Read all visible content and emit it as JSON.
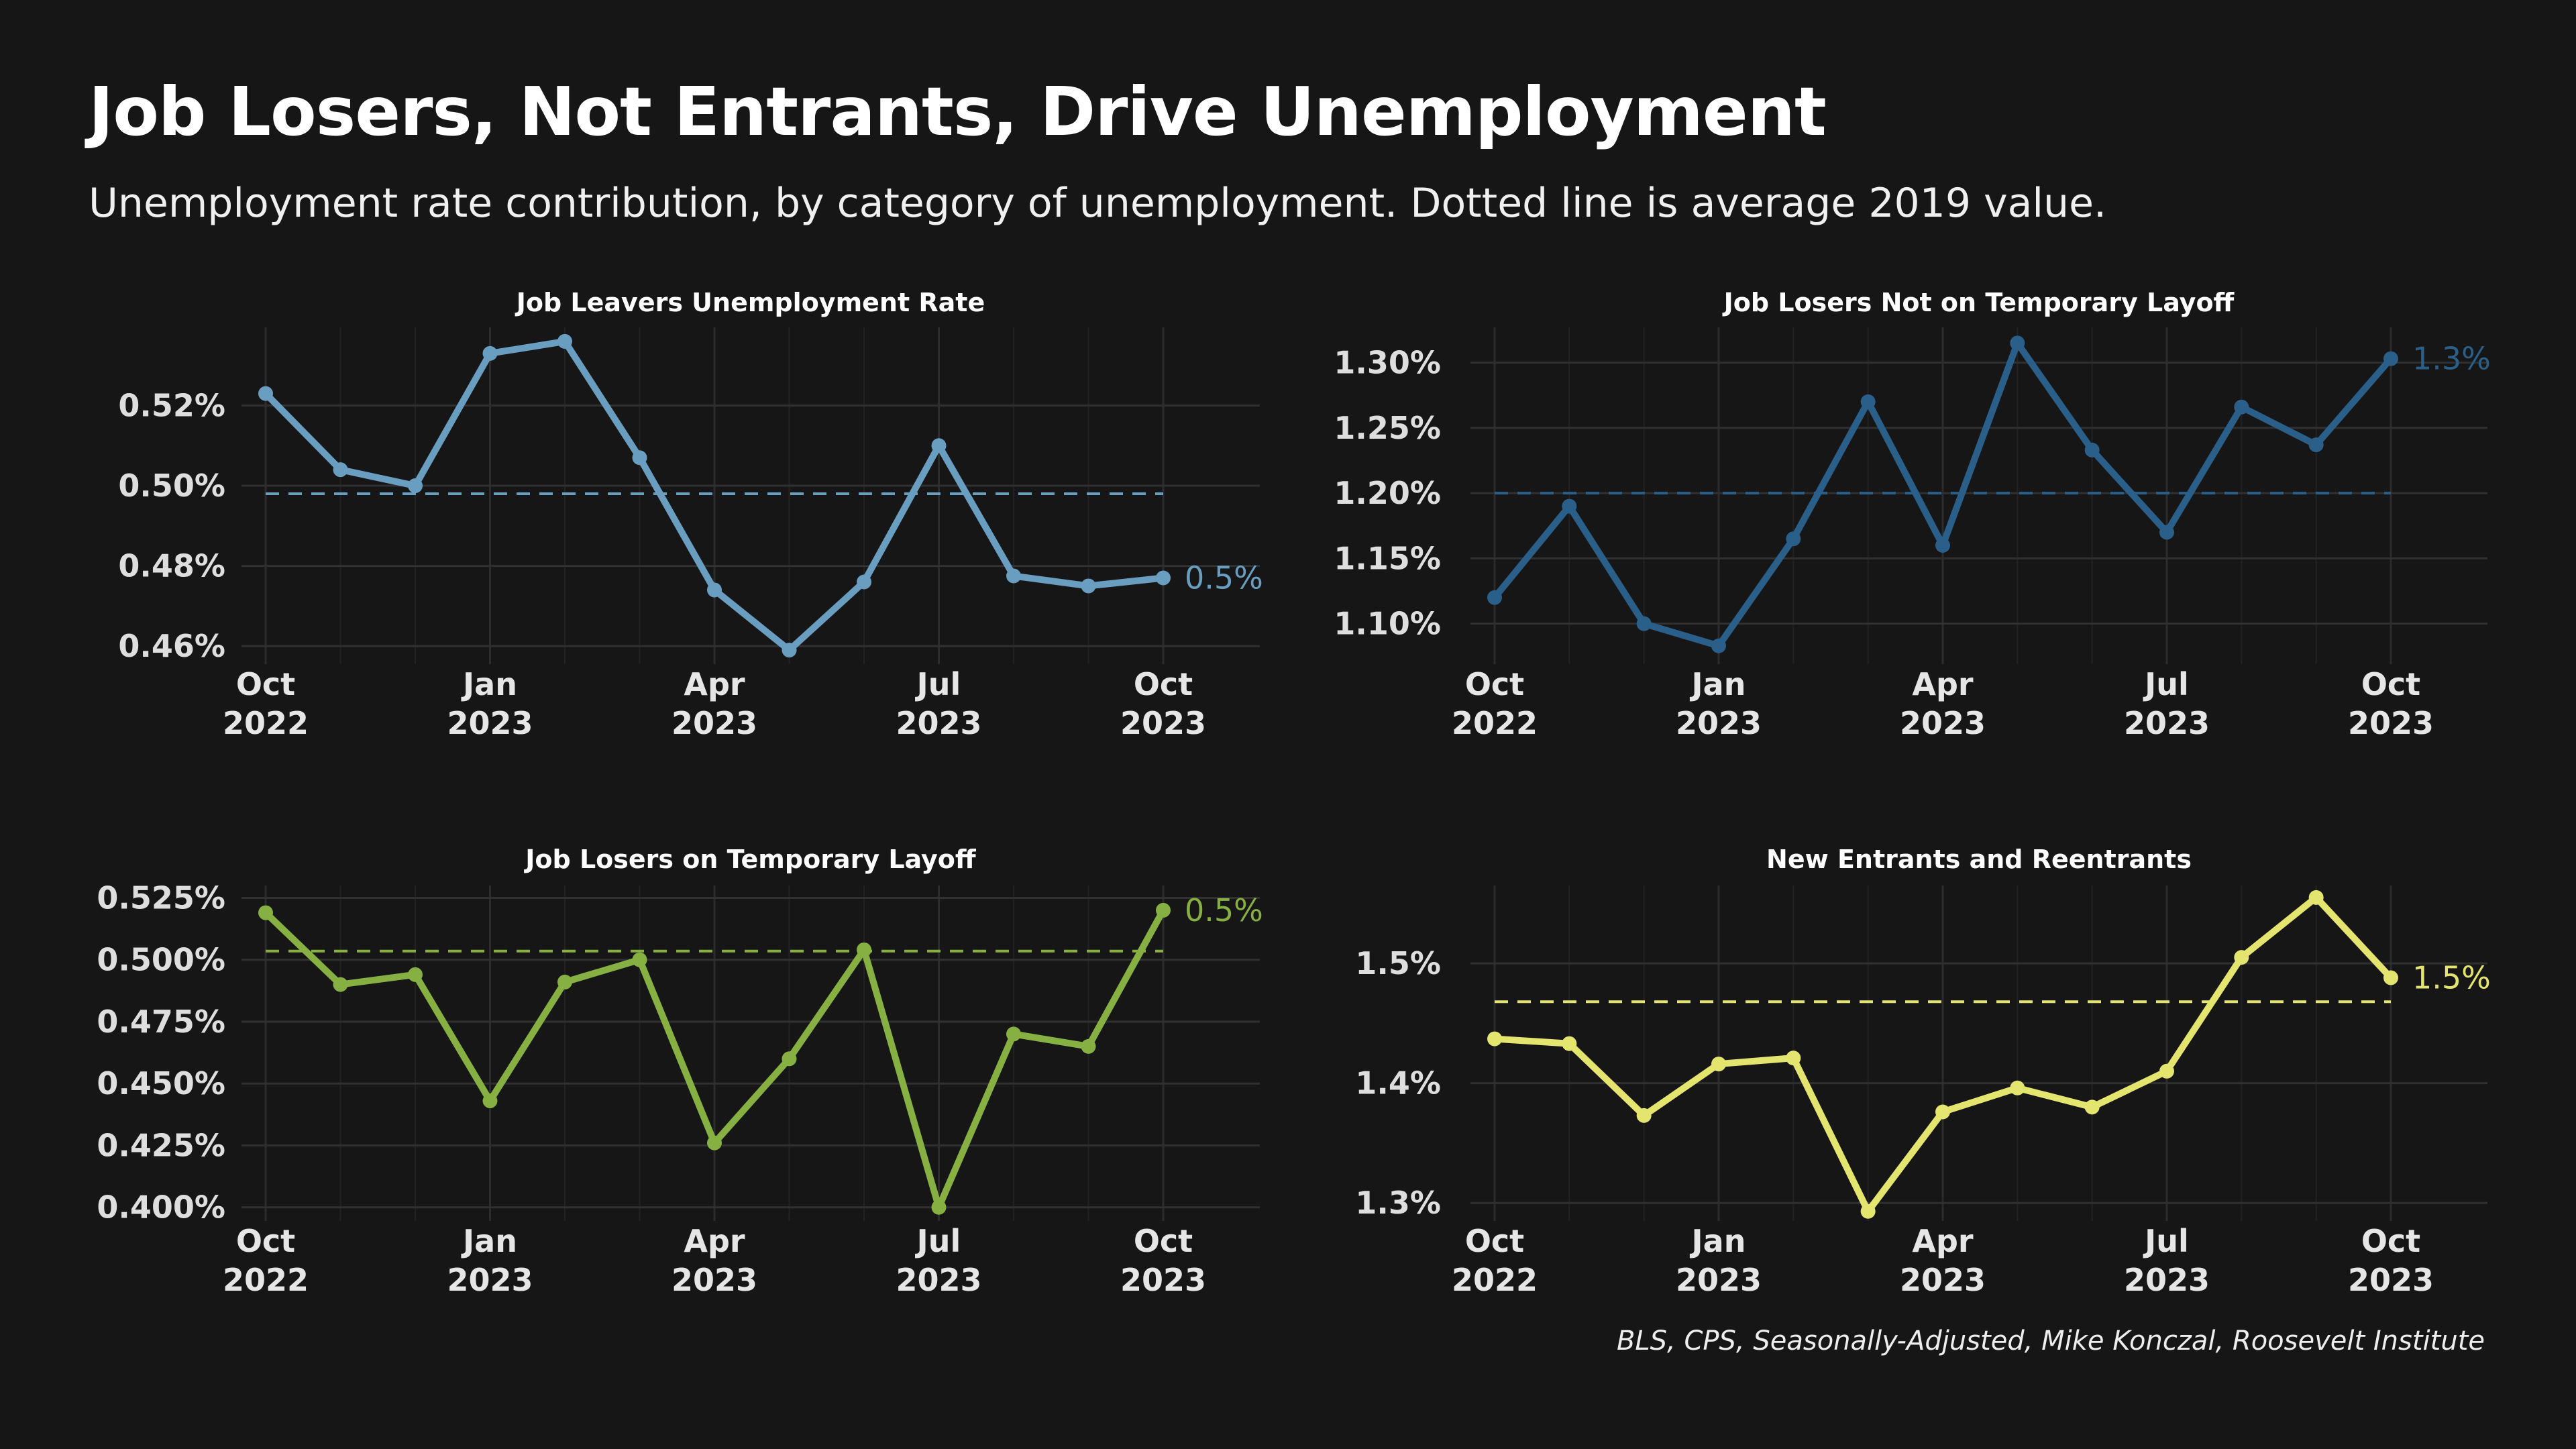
{
  "title": "Job Losers, Not Entrants, Drive Unemployment",
  "subtitle": "Unemployment rate contribution, by category of unemployment. Dotted line is average 2019 value.",
  "caption": "BLS, CPS, Seasonally-Adjusted, Mike Konczal, Roosevelt Institute",
  "chart_data": [
    {
      "type": "line",
      "title": "Job Leavers Unemployment Rate",
      "color": "#6a9ec0",
      "x": [
        "2022-10",
        "2022-11",
        "2022-12",
        "2023-01",
        "2023-02",
        "2023-03",
        "2023-04",
        "2023-05",
        "2023-06",
        "2023-07",
        "2023-08",
        "2023-09",
        "2023-10"
      ],
      "values": [
        0.523,
        0.504,
        0.5,
        0.533,
        0.536,
        0.507,
        0.474,
        0.459,
        0.476,
        0.51,
        0.4775,
        0.475,
        0.477
      ],
      "reference_2019": 0.498,
      "end_label": "0.5%",
      "yticks": [
        0.46,
        0.48,
        0.5,
        0.52
      ],
      "ytick_labels": [
        "0.46%",
        "0.48%",
        "0.50%",
        "0.52%"
      ],
      "ylim": [
        0.4555,
        0.5395
      ],
      "xticks": [
        {
          "line1": "Oct",
          "line2": "2022"
        },
        {
          "line1": "Jan",
          "line2": "2023"
        },
        {
          "line1": "Apr",
          "line2": "2023"
        },
        {
          "line1": "Jul",
          "line2": "2023"
        },
        {
          "line1": "Oct",
          "line2": "2023"
        }
      ]
    },
    {
      "type": "line",
      "title": "Job Losers Not on Temporary Layoff",
      "color": "#2a5f8a",
      "x": [
        "2022-10",
        "2022-11",
        "2022-12",
        "2023-01",
        "2023-02",
        "2023-03",
        "2023-04",
        "2023-05",
        "2023-06",
        "2023-07",
        "2023-08",
        "2023-09",
        "2023-10"
      ],
      "values": [
        1.12,
        1.19,
        1.1,
        1.083,
        1.165,
        1.27,
        1.16,
        1.315,
        1.233,
        1.17,
        1.266,
        1.237,
        1.303
      ],
      "reference_2019": 1.2,
      "end_label": "1.3%",
      "yticks": [
        1.1,
        1.15,
        1.2,
        1.25,
        1.3
      ],
      "ytick_labels": [
        "1.10%",
        "1.15%",
        "1.20%",
        "1.25%",
        "1.30%"
      ],
      "ylim": [
        1.069,
        1.327
      ],
      "xticks": [
        {
          "line1": "Oct",
          "line2": "2022"
        },
        {
          "line1": "Jan",
          "line2": "2023"
        },
        {
          "line1": "Apr",
          "line2": "2023"
        },
        {
          "line1": "Jul",
          "line2": "2023"
        },
        {
          "line1": "Oct",
          "line2": "2023"
        }
      ]
    },
    {
      "type": "line",
      "title": "Job Losers on Temporary Layoff",
      "color": "#86b041",
      "x": [
        "2022-10",
        "2022-11",
        "2022-12",
        "2023-01",
        "2023-02",
        "2023-03",
        "2023-04",
        "2023-05",
        "2023-06",
        "2023-07",
        "2023-08",
        "2023-09",
        "2023-10"
      ],
      "values": [
        0.519,
        0.49,
        0.494,
        0.443,
        0.491,
        0.5,
        0.426,
        0.46,
        0.504,
        0.4,
        0.47,
        0.465,
        0.52
      ],
      "reference_2019": 0.5035,
      "end_label": "0.5%",
      "yticks": [
        0.4,
        0.425,
        0.45,
        0.475,
        0.5,
        0.525
      ],
      "ytick_labels": [
        "0.400%",
        "0.425%",
        "0.450%",
        "0.475%",
        "0.500%",
        "0.525%"
      ],
      "ylim": [
        0.3945,
        0.53
      ],
      "xticks": [
        {
          "line1": "Oct",
          "line2": "2022"
        },
        {
          "line1": "Jan",
          "line2": "2023"
        },
        {
          "line1": "Apr",
          "line2": "2023"
        },
        {
          "line1": "Jul",
          "line2": "2023"
        },
        {
          "line1": "Oct",
          "line2": "2023"
        }
      ]
    },
    {
      "type": "line",
      "title": "New Entrants and Reentrants",
      "color": "#e3e56e",
      "x": [
        "2022-10",
        "2022-11",
        "2022-12",
        "2023-01",
        "2023-02",
        "2023-03",
        "2023-04",
        "2023-05",
        "2023-06",
        "2023-07",
        "2023-08",
        "2023-09",
        "2023-10"
      ],
      "values": [
        1.437,
        1.433,
        1.373,
        1.416,
        1.421,
        1.293,
        1.376,
        1.396,
        1.38,
        1.41,
        1.505,
        1.555,
        1.488
      ],
      "reference_2019": 1.468,
      "end_label": "1.5%",
      "yticks": [
        1.3,
        1.4,
        1.5
      ],
      "ytick_labels": [
        "1.3%",
        "1.4%",
        "1.5%"
      ],
      "ylim": [
        1.285,
        1.565
      ],
      "xticks": [
        {
          "line1": "Oct",
          "line2": "2022"
        },
        {
          "line1": "Jan",
          "line2": "2023"
        },
        {
          "line1": "Apr",
          "line2": "2023"
        },
        {
          "line1": "Jul",
          "line2": "2023"
        },
        {
          "line1": "Oct",
          "line2": "2023"
        }
      ]
    }
  ]
}
